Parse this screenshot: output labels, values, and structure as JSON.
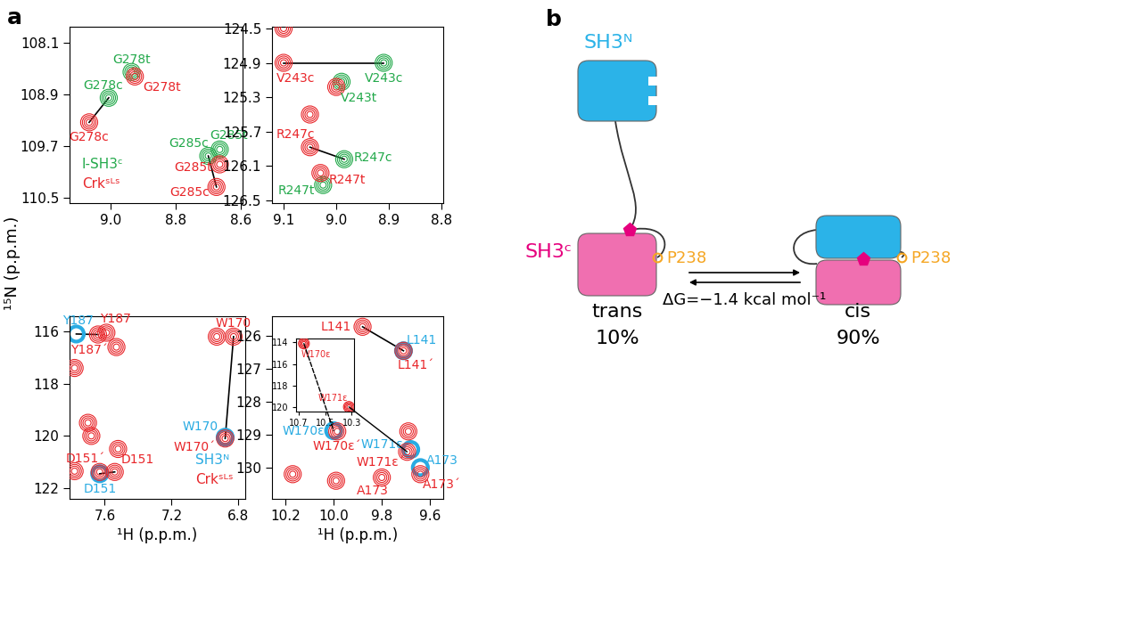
{
  "figure": {
    "panel_labels": [
      "a",
      "b"
    ],
    "ylabel": "¹⁵N (p.p.m.)"
  },
  "chart_data": [
    {
      "type": "scatter",
      "xlim": [
        9.125,
        8.595
      ],
      "ylim": [
        110.58,
        107.85
      ],
      "xticks": [
        9.0,
        8.8,
        8.6
      ],
      "yticks": [
        108.1,
        108.9,
        109.7,
        110.5
      ],
      "legend": "lower left",
      "series": [
        {
          "name": "I-SH3ᶜ",
          "color": "#23a94b",
          "marker": "contours",
          "x": [
            8.935,
            9.005,
            8.7,
            8.665
          ],
          "y": [
            108.55,
            108.95,
            109.85,
            109.75
          ],
          "labels": [
            "G278t",
            "G278c",
            "G285c",
            "G285t"
          ]
        },
        {
          "name": "Crkˢᴸˢ",
          "color": "#e8262a",
          "marker": "contours",
          "x": [
            8.925,
            9.065,
            8.665,
            8.675
          ],
          "y": [
            108.62,
            109.33,
            109.98,
            110.33
          ],
          "labels": [
            "G278t",
            "G278c",
            "G285t",
            "G285c"
          ]
        }
      ],
      "connections": [
        [
          [
            9.005,
            108.95
          ],
          [
            9.065,
            109.33
          ]
        ],
        [
          [
            8.7,
            109.85
          ],
          [
            8.675,
            110.33
          ]
        ]
      ]
    },
    {
      "type": "scatter",
      "xlim": [
        9.122,
        8.797
      ],
      "ylim": [
        126.53,
        124.48
      ],
      "xticks": [
        9.1,
        9.0,
        8.9,
        8.8
      ],
      "yticks": [
        124.5,
        124.9,
        125.3,
        125.7,
        126.1,
        126.5
      ],
      "series": [
        {
          "color": "#23a94b",
          "marker": "contours",
          "x": [
            8.91,
            8.99,
            8.985,
            9.025
          ],
          "y": [
            124.9,
            125.12,
            126.02,
            126.32
          ],
          "labels": [
            "V243c",
            "V243t",
            "R247c",
            "R247t"
          ]
        },
        {
          "color": "#e8262a",
          "marker": "contours",
          "x": [
            9.1,
            9.0,
            9.05,
            9.1,
            9.05,
            9.03
          ],
          "y": [
            124.9,
            125.18,
            125.5,
            124.5,
            125.88,
            126.18
          ],
          "labels": [
            "V243c",
            null,
            null,
            null,
            "R247c",
            "R247t"
          ]
        }
      ],
      "connections": [
        [
          [
            9.1,
            124.9
          ],
          [
            8.91,
            124.9
          ]
        ],
        [
          [
            9.05,
            125.88
          ],
          [
            8.985,
            126.02
          ]
        ]
      ]
    },
    {
      "type": "scatter",
      "xlim": [
        7.81,
        6.76
      ],
      "ylim": [
        122.41,
        115.42
      ],
      "xticks": [
        7.6,
        7.2,
        6.8
      ],
      "yticks": [
        116,
        118,
        120,
        122
      ],
      "legend": "lower right",
      "xlabel": "¹H (p.p.m.)",
      "series": [
        {
          "name": "SH3ᴺ",
          "color": "#29abe2",
          "marker": "ring",
          "x": [
            7.77,
            6.88,
            7.63
          ],
          "y": [
            116.1,
            120.05,
            121.45
          ],
          "labels": [
            "Y187",
            "W170",
            "D151"
          ]
        },
        {
          "name": "Crkˢᴸˢ",
          "color": "#e8262a",
          "marker": "contours",
          "x": [
            7.64,
            7.59,
            7.53,
            6.93,
            6.83,
            6.88,
            7.78,
            7.7,
            7.68,
            7.52,
            7.78,
            7.63,
            7.54
          ],
          "y": [
            116.12,
            116.05,
            116.6,
            116.2,
            116.2,
            120.1,
            117.4,
            119.5,
            120.0,
            120.5,
            121.35,
            121.38,
            121.38
          ],
          "labels": [
            "Y187´",
            "Y187",
            null,
            null,
            "W170",
            "W170´",
            null,
            null,
            null,
            null,
            null,
            "D151´",
            "D151"
          ]
        }
      ],
      "connections": [
        [
          [
            7.77,
            116.1
          ],
          [
            7.64,
            116.12
          ]
        ],
        [
          [
            6.83,
            116.2
          ],
          [
            6.88,
            120.1
          ]
        ],
        [
          [
            7.63,
            121.45
          ],
          [
            7.54,
            121.38
          ]
        ]
      ]
    },
    {
      "type": "scatter",
      "xlim": [
        10.256,
        9.545
      ],
      "ylim": [
        130.95,
        125.4
      ],
      "xticks": [
        10.2,
        10.0,
        9.8,
        9.6
      ],
      "yticks": [
        126,
        127,
        128,
        129,
        130
      ],
      "xlabel": "¹H (p.p.m.)",
      "series": [
        {
          "color": "#29abe2",
          "marker": "ring",
          "x": [
            9.71,
            10.0,
            9.68,
            9.64
          ],
          "y": [
            126.45,
            128.88,
            129.45,
            130.0
          ],
          "labels": [
            "L141",
            "W170ε",
            "W171ε",
            "A173"
          ]
        },
        {
          "color": "#e8262a",
          "marker": "contours",
          "x": [
            9.88,
            9.71,
            9.985,
            9.695,
            9.8,
            9.64,
            9.69,
            10.17,
            9.99
          ],
          "y": [
            125.72,
            126.45,
            128.9,
            129.52,
            130.3,
            130.2,
            128.9,
            130.2,
            130.4
          ],
          "labels": [
            "L141",
            "L141´",
            "W170ε´",
            "W171ε´",
            "A173",
            "A173´",
            null,
            null,
            null
          ]
        }
      ],
      "connections": [
        [
          [
            9.88,
            125.72
          ],
          [
            9.71,
            126.45
          ]
        ]
      ],
      "inset": {
        "type": "scatter",
        "xlim": [
          10.72,
          10.28
        ],
        "ylim": [
          120.4,
          113.6
        ],
        "xticks": [
          10.7,
          10.5,
          10.3
        ],
        "yticks": [
          114,
          116,
          118,
          120
        ],
        "series": [
          {
            "color": "#e8262a",
            "marker": "contours",
            "x": [
              10.66,
              10.32
            ],
            "y": [
              114.1,
              120.0
            ],
            "labels": [
              "W170ε",
              "W171ε"
            ]
          }
        ],
        "connections": []
      },
      "inset_connections": [
        {
          "from": [
            10.66,
            114.1
          ],
          "to": [
            10.0,
            128.88
          ],
          "line_style": "dashed"
        },
        {
          "from": [
            10.32,
            120.0
          ],
          "to": [
            9.695,
            129.52
          ],
          "line_style": "solid"
        }
      ]
    }
  ],
  "diagram": {
    "domains": {
      "n": "SH3ᴺ",
      "c": "SH3ᶜ"
    },
    "residue": "P238",
    "states": [
      {
        "name": "trans",
        "population": "10%"
      },
      {
        "name": "cis",
        "population": "90%"
      }
    ],
    "free_energy": "ΔG=−1.4 kcal mol⁻¹"
  }
}
